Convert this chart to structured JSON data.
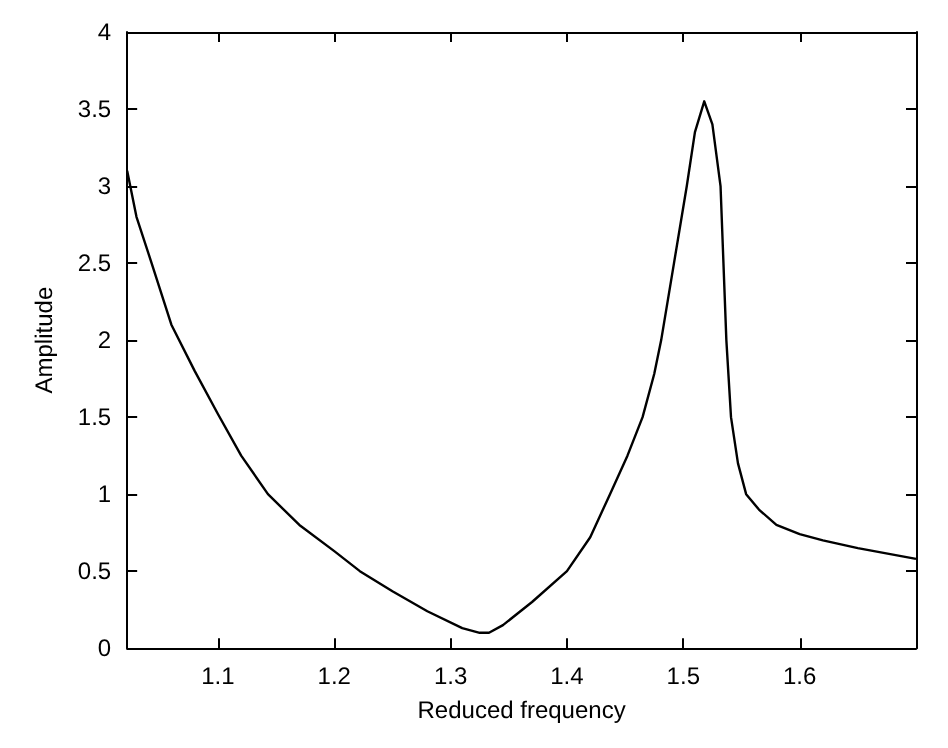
{
  "chart_data": {
    "type": "line",
    "xlabel": "Reduced frequency",
    "ylabel": "Amplitude",
    "x": [
      1.022,
      1.03,
      1.043,
      1.06,
      1.08,
      1.1,
      1.12,
      1.143,
      1.17,
      1.2,
      1.222,
      1.25,
      1.28,
      1.31,
      1.325,
      1.333,
      1.345,
      1.37,
      1.4,
      1.42,
      1.437,
      1.452,
      1.465,
      1.475,
      1.481,
      1.492,
      1.503,
      1.51,
      1.518,
      1.525,
      1.532,
      1.537,
      1.541,
      1.547,
      1.554,
      1.565,
      1.58,
      1.6,
      1.62,
      1.65,
      1.7
    ],
    "series": [
      {
        "color": "#000000",
        "values": [
          3.1,
          2.8,
          2.5,
          2.1,
          1.8,
          1.52,
          1.25,
          1.0,
          0.8,
          0.63,
          0.5,
          0.37,
          0.24,
          0.13,
          0.1,
          0.1,
          0.15,
          0.3,
          0.5,
          0.72,
          1.0,
          1.25,
          1.5,
          1.78,
          2.0,
          2.5,
          3.0,
          3.35,
          3.55,
          3.4,
          3.0,
          2.0,
          1.5,
          1.2,
          1.0,
          0.9,
          0.8,
          0.74,
          0.7,
          0.65,
          0.58
        ]
      }
    ],
    "xlim": [
      1.022,
      1.7
    ],
    "xticks": [
      1.1,
      1.2,
      1.3,
      1.4,
      1.5,
      1.6
    ],
    "ylim": [
      0,
      4
    ],
    "yticks": [
      0,
      0.5,
      1,
      1.5,
      2,
      2.5,
      3,
      3.5,
      4
    ],
    "grid": false,
    "marker": "none",
    "line_style": "solid"
  }
}
